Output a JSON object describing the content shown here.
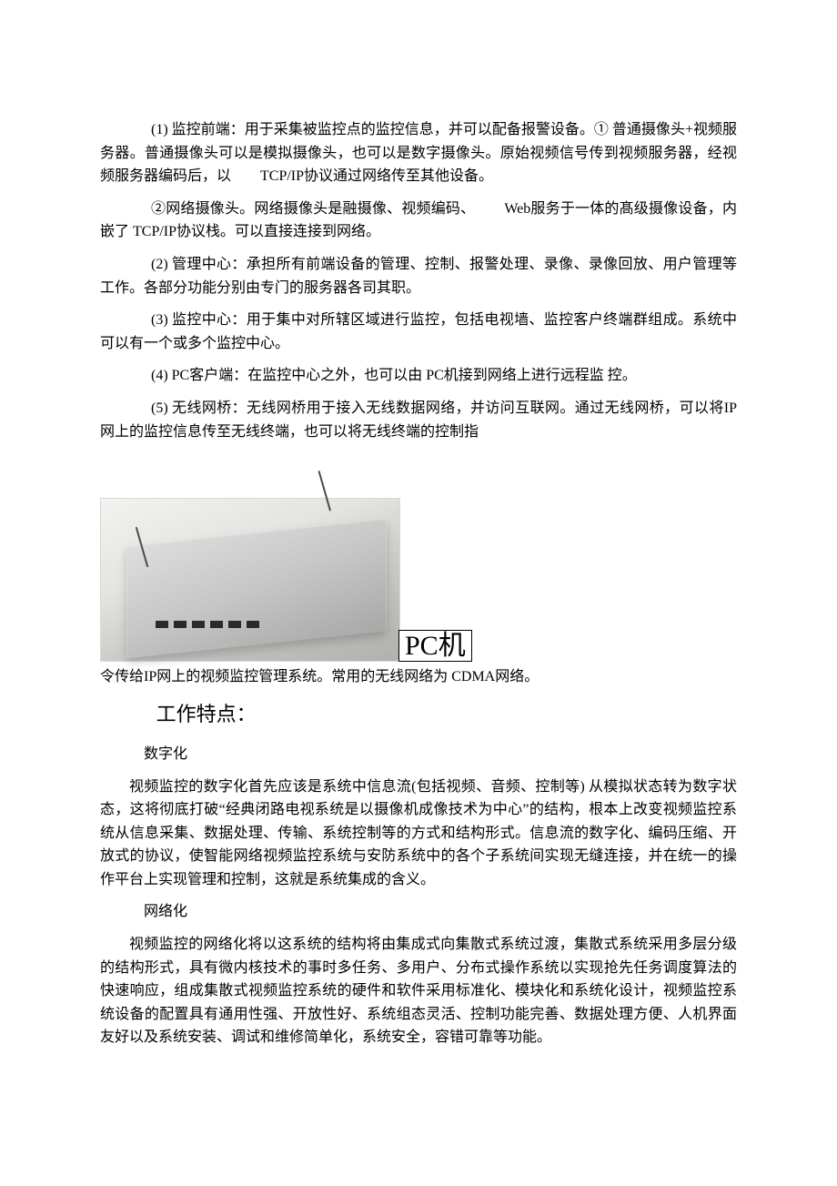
{
  "p1": "(1) 监控前端：用于采集被监控点的监控信息，并可以配备报警设备。① 普通摄像头+视频服务器。普通摄像头可以是模拟摄像头，也可以是数字摄像头。原始视频信号传到视频服务器，经视频服务器编码后，以  TCP/IP协议通过网络传至其他设备。",
  "p2": "②网络摄像头。网络摄像头是融摄像、视频编码、  Web服务于一体的髙级摄像设备，内嵌了 TCP/IP协议栈。可以直接连接到网络。",
  "p3": "(2) 管理中心：承担所有前端设备的管理、控制、报警处理、录像、录像回放、用户管理等工作。各部分功能分别由专门的服务器各司其职。",
  "p4": "(3) 监控中心：用于集中对所辖区域进行监控，包括电视墙、监控客户终端群组成。系统中可以有一个或多个监控中心。",
  "p5": "(4) PC客户端：在监控中心之外，也可以由 PC机接到网络上进行远程监 控。",
  "p6": "(5) 无线网桥：无线网桥用于接入无线数据网络，并访问互联网。通过无线网桥，可以将IP网上的监控信息传至无线终端，也可以将无线终端的控制指",
  "pc_label": "PC机",
  "p7": "令传给IP网上的视频监控管理系统。常用的无线网络为 CDMA网络。",
  "section": "工作特点：",
  "sub1": "数字化",
  "p8": "视频监控的数字化首先应该是系统中信息流(包括视频、音频、控制等) 从模拟状态转为数字状态，这将彻底打破“经典闭路电视系统是以摄像机成像技术为中心”的结构，根本上改变视频监控系统从信息采集、数据处理、传输、系统控制等的方式和结构形式。信息流的数字化、编码压缩、开放式的协议，使智能网络视频监控系统与安防系统中的各个子系统间实现无缝连接，并在统一的操作平台上实现管理和控制，这就是系统集成的含义。",
  "sub2": "网络化",
  "p9": "视频监控的网络化将以这系统的结构将由集成式向集散式系统过渡，集散式系统采用多层分级的结构形式，具有微内核技术的事时多任务、多用户、分布式操作系统以实现抢先任务调度算法的快速响应，组成集散式视频监控系统的硬件和软件采用标准化、模块化和系统化设计，视频监控系统设备的配置具有通用性强、开放性好、系统组态灵活、控制功能完善、数据处理方便、人机界面友好以及系统安装、调试和维修简单化，系统安全，容错可靠等功能。"
}
